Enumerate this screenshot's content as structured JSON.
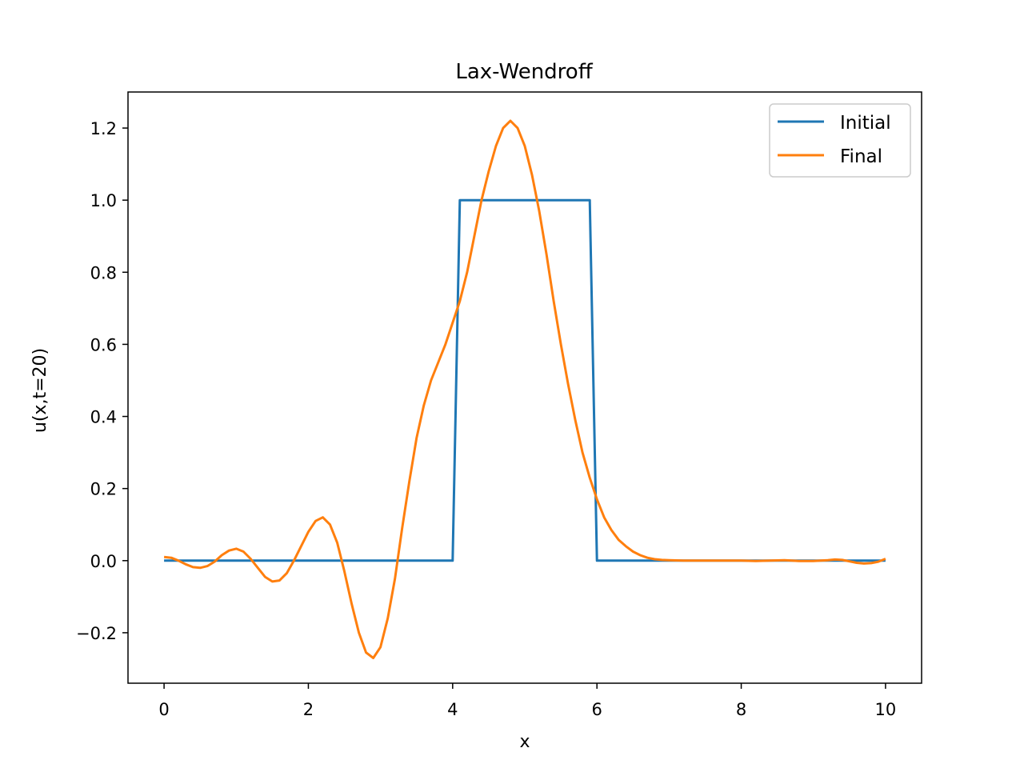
{
  "chart_data": {
    "type": "line",
    "title": "Lax-Wendroff",
    "xlabel": "x",
    "ylabel": "u(x,t=20)",
    "xlim": [
      -0.5,
      10.5
    ],
    "ylim": [
      -0.34,
      1.3
    ],
    "xticks": [
      0,
      2,
      4,
      6,
      8,
      10
    ],
    "xtick_labels": [
      "0",
      "2",
      "4",
      "6",
      "8",
      "10"
    ],
    "yticks": [
      -0.2,
      0.0,
      0.2,
      0.4,
      0.6,
      0.8,
      1.0,
      1.2
    ],
    "ytick_labels": [
      "−0.2",
      "0.0",
      "0.2",
      "0.4",
      "0.6",
      "0.8",
      "1.0",
      "1.2"
    ],
    "grid": false,
    "legend_position": "top-right",
    "series": [
      {
        "name": "Initial",
        "color": "#1f77b4",
        "x": [
          0,
          4.0,
          4.1,
          5.9,
          6.0,
          10.0
        ],
        "y": [
          0,
          0,
          1.0,
          1.0,
          0,
          0
        ]
      },
      {
        "name": "Final",
        "color": "#ff7f0e",
        "x": [
          0,
          0.1,
          0.2,
          0.3,
          0.4,
          0.5,
          0.6,
          0.7,
          0.8,
          0.9,
          1.0,
          1.1,
          1.2,
          1.3,
          1.4,
          1.5,
          1.6,
          1.7,
          1.8,
          1.9,
          2.0,
          2.1,
          2.2,
          2.3,
          2.4,
          2.5,
          2.6,
          2.7,
          2.8,
          2.9,
          3.0,
          3.1,
          3.2,
          3.3,
          3.4,
          3.5,
          3.6,
          3.7,
          3.8,
          3.9,
          4.0,
          4.1,
          4.2,
          4.3,
          4.4,
          4.5,
          4.6,
          4.7,
          4.8,
          4.9,
          5.0,
          5.1,
          5.2,
          5.3,
          5.4,
          5.5,
          5.6,
          5.7,
          5.8,
          5.9,
          6.0,
          6.1,
          6.2,
          6.3,
          6.4,
          6.5,
          6.6,
          6.7,
          6.8,
          6.9,
          7.0,
          7.2,
          7.4,
          7.6,
          7.8,
          8.0,
          8.2,
          8.4,
          8.6,
          8.8,
          9.0,
          9.2,
          9.3,
          9.4,
          9.5,
          9.6,
          9.7,
          9.8,
          9.9,
          10.0
        ],
        "y": [
          0.01,
          0.008,
          0.0,
          -0.01,
          -0.018,
          -0.02,
          -0.015,
          -0.003,
          0.015,
          0.028,
          0.033,
          0.025,
          0.005,
          -0.02,
          -0.045,
          -0.058,
          -0.055,
          -0.035,
          0.0,
          0.04,
          0.08,
          0.11,
          0.12,
          0.1,
          0.05,
          -0.03,
          -0.12,
          -0.2,
          -0.255,
          -0.27,
          -0.24,
          -0.16,
          -0.05,
          0.09,
          0.22,
          0.34,
          0.43,
          0.5,
          0.55,
          0.6,
          0.66,
          0.72,
          0.8,
          0.9,
          1.0,
          1.08,
          1.15,
          1.2,
          1.22,
          1.2,
          1.15,
          1.07,
          0.97,
          0.85,
          0.72,
          0.6,
          0.49,
          0.39,
          0.3,
          0.23,
          0.17,
          0.12,
          0.085,
          0.058,
          0.04,
          0.025,
          0.015,
          0.008,
          0.004,
          0.002,
          0.001,
          0.0,
          0.0,
          0.0,
          0.0,
          0.0,
          -0.001,
          0.0,
          0.001,
          -0.001,
          -0.001,
          0.001,
          0.003,
          0.002,
          -0.002,
          -0.006,
          -0.008,
          -0.007,
          -0.003,
          0.005
        ]
      }
    ]
  }
}
